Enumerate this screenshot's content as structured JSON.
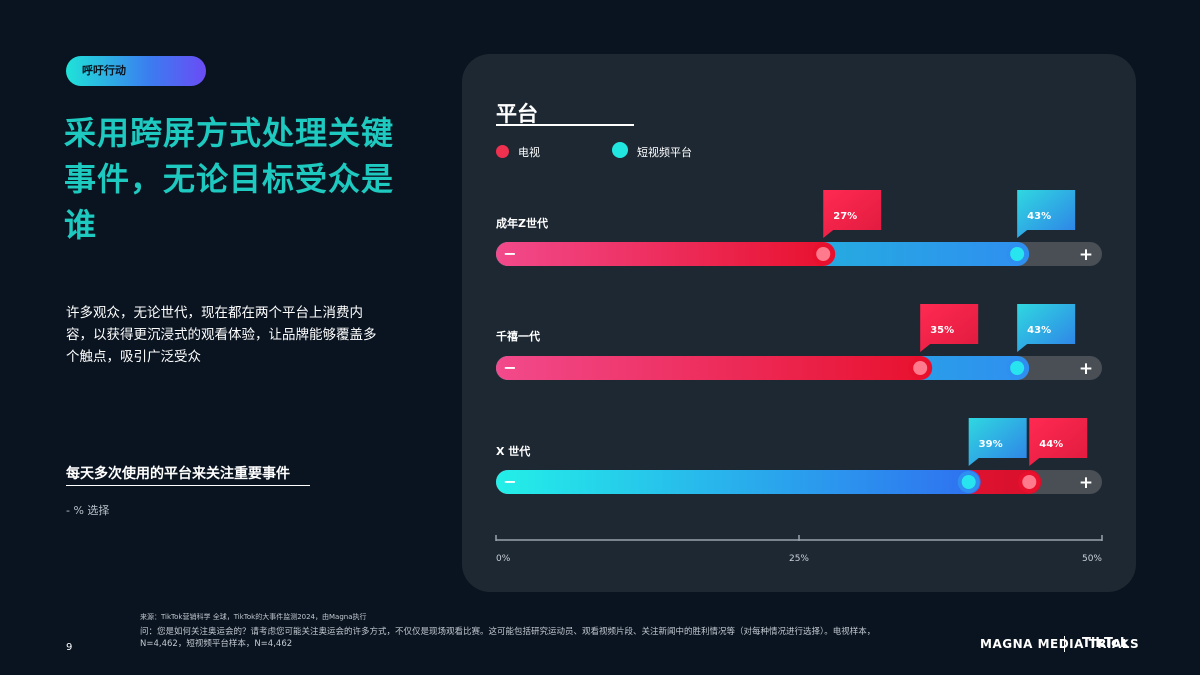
{
  "tag": "呼吁行动",
  "headline": "采用跨屏方式处理关键事件，无论目标受众是谁",
  "body": "许多观众，无论世代，现在都在两个平台上消费内容，以获得更沉浸式的观看体验，让品牌能够覆盖多个触点，吸引广泛受众",
  "note": {
    "title": "每天多次使用的平台来关注重要事件",
    "subtitle": "- % 选择"
  },
  "chart_data": {
    "type": "bar",
    "title": "平台",
    "legend": [
      {
        "name": "电视",
        "color": "#f0304f"
      },
      {
        "name": "短视频平台",
        "color": "#21e6e0"
      }
    ],
    "categories": [
      "成年Z世代",
      "千禧一代",
      "X 世代"
    ],
    "series": [
      {
        "name": "电视",
        "values": [
          27,
          35,
          44
        ],
        "labels": [
          "27%",
          "35%",
          "44%"
        ]
      },
      {
        "name": "短视频平台",
        "values": [
          43,
          43,
          39
        ],
        "labels": [
          "43%",
          "43%",
          "39%"
        ]
      }
    ],
    "xlim": [
      0,
      50
    ],
    "xticks": [
      0,
      25,
      50
    ],
    "xtick_labels": [
      "0%",
      "25%",
      "50%"
    ],
    "minus_symbol": "−",
    "plus_symbol": "+"
  },
  "footer": {
    "source": "来源：TikTok营销科学 全球，TikTok的大事件监测2024，由Magna执行",
    "note": "问：您是如何关注奥运会的？请考虑您可能关注奥运会的许多方式，不仅仅是现场观看比赛。这可能包括研究运动员、观看视频片段、关注新闻中的胜利情况等（对每种情况进行选择）。电视样本，N=4,462，短视频平台样本，N=4,462"
  },
  "page_number": "9",
  "brand": {
    "left": "MAGNA MEDIA TRIALS",
    "right": "TikTok"
  }
}
